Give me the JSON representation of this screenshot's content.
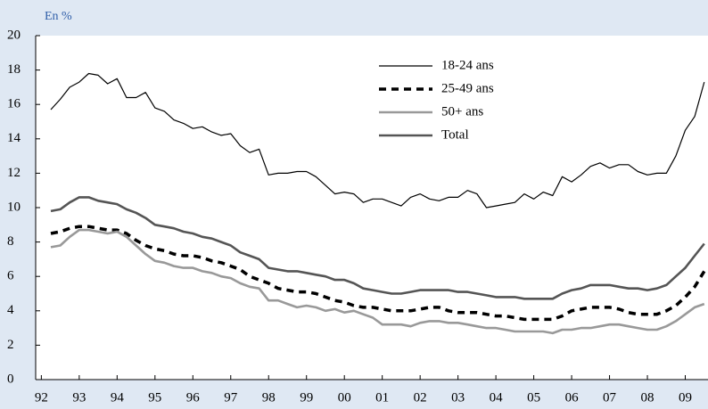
{
  "chart_data": {
    "type": "line",
    "y_label": "En %",
    "xlim": [
      1991.85,
      2009.6
    ],
    "ylim": [
      0,
      20
    ],
    "yticks": [
      0,
      2,
      4,
      6,
      8,
      10,
      12,
      14,
      16,
      18,
      20
    ],
    "xticks": [
      {
        "value": 1992,
        "label": "92"
      },
      {
        "value": 1993,
        "label": "93"
      },
      {
        "value": 1994,
        "label": "94"
      },
      {
        "value": 1995,
        "label": "95"
      },
      {
        "value": 1996,
        "label": "96"
      },
      {
        "value": 1997,
        "label": "97"
      },
      {
        "value": 1998,
        "label": "98"
      },
      {
        "value": 1999,
        "label": "99"
      },
      {
        "value": 2000,
        "label": "00"
      },
      {
        "value": 2001,
        "label": "01"
      },
      {
        "value": 2002,
        "label": "02"
      },
      {
        "value": 2003,
        "label": "03"
      },
      {
        "value": 2004,
        "label": "04"
      },
      {
        "value": 2005,
        "label": "05"
      },
      {
        "value": 2006,
        "label": "06"
      },
      {
        "value": 2007,
        "label": "07"
      },
      {
        "value": 2008,
        "label": "08"
      },
      {
        "value": 2009,
        "label": "09"
      }
    ],
    "x": [
      1992.25,
      1992.5,
      1992.75,
      1993,
      1993.25,
      1993.5,
      1993.75,
      1994,
      1994.25,
      1994.5,
      1994.75,
      1995,
      1995.25,
      1995.5,
      1995.75,
      1996,
      1996.25,
      1996.5,
      1996.75,
      1997,
      1997.25,
      1997.5,
      1997.75,
      1998,
      1998.25,
      1998.5,
      1998.75,
      1999,
      1999.25,
      1999.5,
      1999.75,
      2000,
      2000.25,
      2000.5,
      2000.75,
      2001,
      2001.25,
      2001.5,
      2001.75,
      2002,
      2002.25,
      2002.5,
      2002.75,
      2003,
      2003.25,
      2003.5,
      2003.75,
      2004,
      2004.25,
      2004.5,
      2004.75,
      2005,
      2005.25,
      2005.5,
      2005.75,
      2006,
      2006.25,
      2006.5,
      2006.75,
      2007,
      2007.25,
      2007.5,
      2007.75,
      2008,
      2008.25,
      2008.5,
      2008.75,
      2009,
      2009.25,
      2009.5
    ],
    "series": [
      {
        "name": "18-24 ans",
        "color": "#000000",
        "values": [
          15.7,
          16.3,
          17.0,
          17.3,
          17.8,
          17.7,
          17.2,
          17.5,
          16.4,
          16.4,
          16.7,
          15.8,
          15.6,
          15.1,
          14.9,
          14.6,
          14.7,
          14.4,
          14.2,
          14.3,
          13.6,
          13.2,
          13.4,
          11.9,
          12.0,
          12.0,
          12.1,
          12.1,
          11.8,
          11.3,
          10.8,
          10.9,
          10.8,
          10.3,
          10.5,
          10.5,
          10.3,
          10.1,
          10.6,
          10.8,
          10.5,
          10.4,
          10.6,
          10.6,
          11.0,
          10.8,
          10.0,
          10.1,
          10.2,
          10.3,
          10.8,
          10.5,
          10.9,
          10.7,
          11.8,
          11.5,
          11.9,
          12.4,
          12.6,
          12.3,
          12.5,
          12.5,
          12.1,
          11.9,
          12.0,
          12.0,
          13.0,
          14.5,
          15.3,
          17.3
        ]
      },
      {
        "name": "25-49 ans",
        "color": "#000000",
        "values": [
          8.5,
          8.6,
          8.8,
          8.9,
          8.9,
          8.8,
          8.7,
          8.7,
          8.5,
          8.1,
          7.8,
          7.6,
          7.5,
          7.3,
          7.2,
          7.2,
          7.1,
          6.9,
          6.8,
          6.6,
          6.4,
          6.0,
          5.8,
          5.6,
          5.3,
          5.2,
          5.1,
          5.1,
          5.0,
          4.8,
          4.6,
          4.5,
          4.3,
          4.2,
          4.2,
          4.1,
          4.0,
          4.0,
          4.0,
          4.1,
          4.2,
          4.2,
          4.0,
          3.9,
          3.9,
          3.9,
          3.8,
          3.7,
          3.7,
          3.6,
          3.5,
          3.5,
          3.5,
          3.5,
          3.7,
          4.0,
          4.1,
          4.2,
          4.2,
          4.2,
          4.1,
          3.9,
          3.8,
          3.8,
          3.8,
          4.0,
          4.3,
          4.8,
          5.4,
          6.3
        ]
      },
      {
        "name": "50+ ans",
        "color": "#999999",
        "values": [
          7.7,
          7.8,
          8.3,
          8.7,
          8.7,
          8.6,
          8.5,
          8.6,
          8.3,
          7.8,
          7.3,
          6.9,
          6.8,
          6.6,
          6.5,
          6.5,
          6.3,
          6.2,
          6.0,
          5.9,
          5.6,
          5.4,
          5.3,
          4.6,
          4.6,
          4.4,
          4.2,
          4.3,
          4.2,
          4.0,
          4.1,
          3.9,
          4.0,
          3.8,
          3.6,
          3.2,
          3.2,
          3.2,
          3.1,
          3.3,
          3.4,
          3.4,
          3.3,
          3.3,
          3.2,
          3.1,
          3.0,
          3.0,
          2.9,
          2.8,
          2.8,
          2.8,
          2.8,
          2.7,
          2.9,
          2.9,
          3.0,
          3.0,
          3.1,
          3.2,
          3.2,
          3.1,
          3.0,
          2.9,
          2.9,
          3.1,
          3.4,
          3.8,
          4.2,
          4.4
        ]
      },
      {
        "name": "Total",
        "color": "#555555",
        "values": [
          9.8,
          9.9,
          10.3,
          10.6,
          10.6,
          10.4,
          10.3,
          10.2,
          9.9,
          9.7,
          9.4,
          9.0,
          8.9,
          8.8,
          8.6,
          8.5,
          8.3,
          8.2,
          8.0,
          7.8,
          7.4,
          7.2,
          7.0,
          6.5,
          6.4,
          6.3,
          6.3,
          6.2,
          6.1,
          6.0,
          5.8,
          5.8,
          5.6,
          5.3,
          5.2,
          5.1,
          5.0,
          5.0,
          5.1,
          5.2,
          5.2,
          5.2,
          5.2,
          5.1,
          5.1,
          5.0,
          4.9,
          4.8,
          4.8,
          4.8,
          4.7,
          4.7,
          4.7,
          4.7,
          5.0,
          5.2,
          5.3,
          5.5,
          5.5,
          5.5,
          5.4,
          5.3,
          5.3,
          5.2,
          5.3,
          5.5,
          6.0,
          6.5,
          7.2,
          7.9
        ]
      }
    ]
  }
}
